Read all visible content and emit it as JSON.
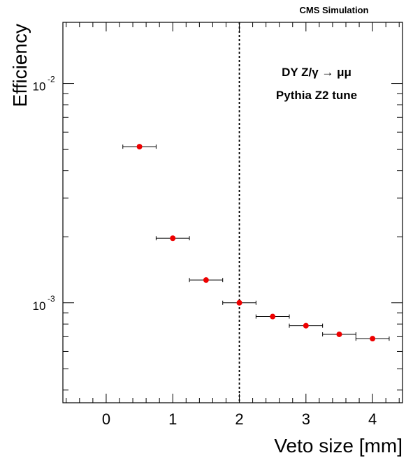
{
  "chart_data": {
    "type": "scatter",
    "header": "CMS Simulation",
    "annotations": [
      "DY Z/γ → μμ",
      "Pythia Z2 tune"
    ],
    "xlabel": "Veto size [mm]",
    "ylabel": "Efficiency",
    "xlim": [
      -0.65,
      4.45
    ],
    "ylim": [
      0.00035,
      0.019
    ],
    "yscale": "log",
    "x_ticks": [
      "0",
      "1",
      "2",
      "3",
      "4"
    ],
    "y_ticks": [
      {
        "base": "10",
        "exp": "-3"
      },
      {
        "base": "10",
        "exp": "-2"
      }
    ],
    "vertical_line": {
      "x": 2.0,
      "style": "dotted"
    },
    "marker_color": "#ee0000",
    "series": [
      {
        "x": [
          0.5,
          1.0,
          1.5,
          2.0,
          2.5,
          3.0,
          3.5,
          4.0
        ],
        "y": [
          0.00515,
          0.00197,
          0.00127,
          0.001,
          0.000865,
          0.000786,
          0.000718,
          0.000686
        ],
        "xerr": 0.25
      }
    ]
  }
}
